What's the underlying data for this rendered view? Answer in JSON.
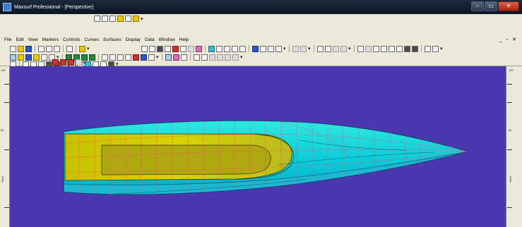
{
  "window": {
    "title": "Maxsurf Professional - [Perspective]",
    "minimize": "–",
    "maximize": "▭",
    "close": "✕"
  },
  "menu": {
    "items": [
      "File",
      "Edit",
      "View",
      "Markers",
      "Controls",
      "Curves",
      "Surfaces",
      "Display",
      "Data",
      "Window",
      "Help"
    ],
    "mdi_controls": "_ ▫ ✕"
  },
  "toolbar_icons": {
    "row1": [
      "zoom-in-icon",
      "zoom-out-icon",
      "pan-icon",
      "home-view-icon",
      "rotate-icon",
      "lightning-icon"
    ],
    "row2": [
      "new-file-icon",
      "open-file-icon",
      "save-icon",
      "cut-icon",
      "copy-icon",
      "paste-icon",
      "print-icon",
      "help-icon"
    ],
    "row3": [
      "select-icon",
      "pointer-icon",
      "node-icon",
      "add-node-icon",
      "surface-icon",
      "grid-icon",
      "shade-icon",
      "wireframe-icon"
    ],
    "row4": [
      "sections-icon",
      "buttocks-icon",
      "waterlines-icon",
      "diagonals-icon",
      "layers-icon",
      "contours-icon",
      "curvature-icon"
    ]
  },
  "rulers": {
    "left_top": "100",
    "left_mid": "50",
    "left_label": "Pitch",
    "right_top": "100",
    "right_mid": "50",
    "right_label": "Pitch"
  },
  "colors": {
    "background": "#4a38b0",
    "hull_cyan": "#00e8e8",
    "deck_yellow": "#d8d800",
    "grid_lines": "#ff4060"
  }
}
